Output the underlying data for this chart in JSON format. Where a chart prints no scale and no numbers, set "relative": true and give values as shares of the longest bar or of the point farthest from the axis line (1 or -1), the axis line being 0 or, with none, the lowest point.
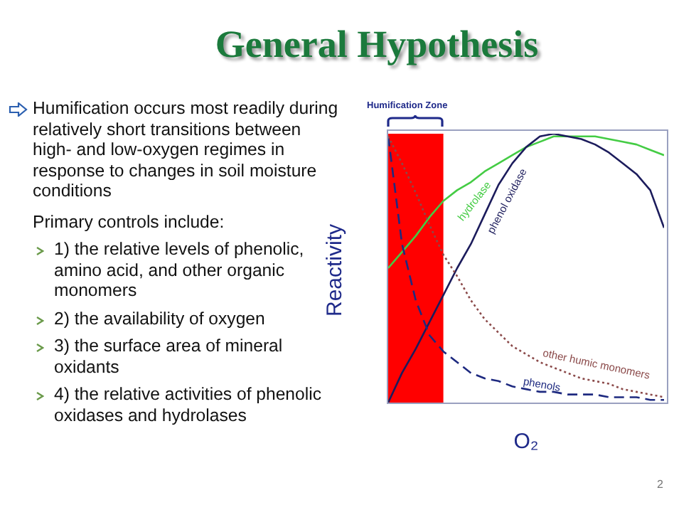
{
  "chart_data": {
    "type": "line",
    "title": "General Hypothesis",
    "xlabel": "O₂",
    "ylabel": "Reactivity",
    "relative": true,
    "categories": [
      null,
      null,
      null,
      null,
      null,
      null,
      null,
      null,
      null,
      null,
      null,
      null,
      null,
      null,
      null,
      null,
      null,
      null,
      null,
      null,
      null
    ],
    "series": [
      {
        "name": "hydrolase",
        "color": "#44cc44",
        "line_style": "solid",
        "values": [
          0.5,
          0.56,
          0.62,
          0.69,
          0.75,
          0.79,
          0.82,
          0.86,
          0.89,
          0.92,
          0.95,
          0.97,
          0.99,
          0.99,
          0.99,
          0.99,
          0.98,
          0.97,
          0.96,
          0.94,
          0.92
        ]
      },
      {
        "name": "phenol oxidase",
        "color": "#1c1c5c",
        "line_style": "solid",
        "values": [
          0,
          0.11,
          0.2,
          0.3,
          0.4,
          0.5,
          0.59,
          0.7,
          0.81,
          0.89,
          0.95,
          0.99,
          1,
          0.99,
          0.98,
          0.96,
          0.93,
          0.89,
          0.85,
          0.79,
          0.65
        ]
      },
      {
        "name": "phenols",
        "color": "#1e2a80",
        "line_style": "dashed",
        "values": [
          0.99,
          0.59,
          0.38,
          0.25,
          0.19,
          0.15,
          0.11,
          0.09,
          0.08,
          0.06,
          0.05,
          0.04,
          0.04,
          0.03,
          0.03,
          0.03,
          0.02,
          0.02,
          0.02,
          0.01,
          0.01
        ]
      },
      {
        "name": "other humic monomers",
        "color": "#8b4a4a",
        "line_style": "dotted",
        "values": [
          0.99,
          0.89,
          0.78,
          0.66,
          0.55,
          0.47,
          0.38,
          0.31,
          0.26,
          0.21,
          0.18,
          0.15,
          0.13,
          0.11,
          0.09,
          0.08,
          0.07,
          0.05,
          0.04,
          0.03,
          0.02
        ]
      }
    ],
    "annotations": [
      "Humification occurs most readily during relatively short transitions between high- and low-oxygen regimes in response to changes in soil moisture conditions",
      "Primary controls include:",
      "1) the relative levels of phenolic, amino acid, and other organic monomers",
      "2) the availability of oxygen",
      "3) the surface area of mineral oxidants",
      "4) the relative activities of phenolic oxidases and hydrolases",
      "Humification Zone",
      "2"
    ]
  }
}
